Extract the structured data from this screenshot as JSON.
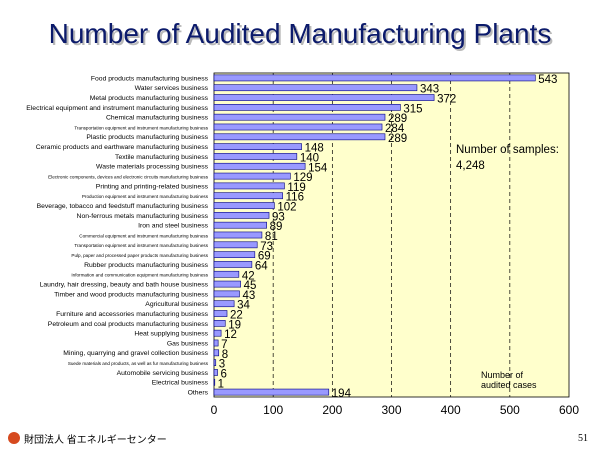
{
  "slide": {
    "title": "Number of Audited Manufacturing Plants",
    "footer_org": "財団法人 省エネルギーセンター",
    "page_number": "51"
  },
  "chart_data": {
    "type": "bar",
    "orientation": "horizontal",
    "title": "Number of Audited Manufacturing Plants",
    "xlabel": "",
    "ylabel": "",
    "xlim": [
      0,
      600
    ],
    "xticks": [
      0,
      100,
      200,
      300,
      400,
      500,
      600
    ],
    "grid": true,
    "colors": {
      "plot_bg": "#ffffcc",
      "bar_fill": "#9999ff",
      "bar_stroke": "#000080",
      "grid": "#000000",
      "title": "#0b1a6b"
    },
    "categories": [
      "Food products manufacturing business",
      "Water services business",
      "Metal products manufacturing business",
      "Electrical equipment and instrument manufacturing business",
      "Chemical manufacturing business",
      "Transportation equipment and instrument manufacturing business",
      "Plastic products manufacturing business",
      "Ceramic products and earthware manufacturing business",
      "Textile manufacturing business",
      "Waste materials processing business",
      "Electronic components, devices and electronic circuits manufacturing business",
      "Printing and printing-related business",
      "Production equipment and instrument manufacturing business",
      "Beverage, tobacco and feedstuff manufacturing business",
      "Non-ferrous metals manufacturing business",
      "Iron and steel business",
      "Commercial equipment and instrument manufacturing business",
      "Transportation equipment and instrument manufacturing business",
      "Pulp, paper and processed paper products manufacturing business",
      "Rubber products manufacturing business",
      "Information and communication equipment manufacturing business",
      "Laundry, hair dressing, beauty and bath house business",
      "Timber and wood products manufacturing business",
      "Agricultural business",
      "Furniture and accessories manufacturing business",
      "Petroleum and coal products manufacturing business",
      "Heat supplying business",
      "Gas business",
      "Mining, quarrying and gravel collection business",
      "Suede materials and products, as well as fur manufacturing business",
      "Automobile servicing business",
      "Electrical business",
      "Others"
    ],
    "values": [
      543,
      343,
      372,
      315,
      289,
      284,
      289,
      148,
      140,
      154,
      129,
      119,
      116,
      102,
      93,
      89,
      81,
      73,
      69,
      64,
      42,
      45,
      43,
      34,
      22,
      19,
      12,
      7,
      8,
      3,
      6,
      1,
      194
    ],
    "small_label_indices": [
      5,
      10,
      12,
      16,
      17,
      18,
      20,
      29
    ],
    "annotations": [
      {
        "text_lines": [
          "Number of samples:",
          "4,248"
        ]
      },
      {
        "text_lines": [
          "Number of",
          "audited cases"
        ]
      }
    ]
  }
}
